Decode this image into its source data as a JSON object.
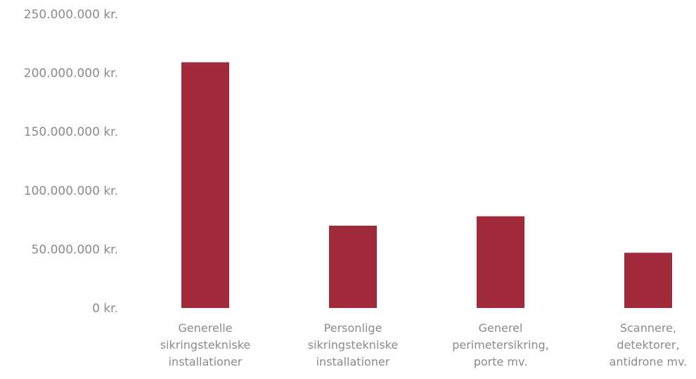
{
  "chart_data": {
    "type": "bar",
    "title": "",
    "xlabel": "",
    "ylabel": "",
    "ylim": [
      0,
      250000000
    ],
    "y_ticks": [
      {
        "value": 0,
        "label": "0 kr."
      },
      {
        "value": 50000000,
        "label": "50.000.000 kr."
      },
      {
        "value": 100000000,
        "label": "100.000.000 kr."
      },
      {
        "value": 150000000,
        "label": "150.000.000 kr."
      },
      {
        "value": 200000000,
        "label": "200.000.000 kr."
      },
      {
        "value": 250000000,
        "label": "250.000.000 kr."
      }
    ],
    "categories": [
      [
        "Generelle",
        "sikringstekniske",
        "installationer"
      ],
      [
        "Personlige",
        "sikringstekniske",
        "installationer"
      ],
      [
        "Generel",
        "perimetersikring,",
        "porte mv."
      ],
      [
        "Scannere,",
        "detektorer,",
        "antidrone mv."
      ]
    ],
    "values": [
      209000000,
      70000000,
      78000000,
      47000000
    ],
    "grid": false,
    "bar_color": "#a12a3a",
    "text_color": "#8a8a8a"
  }
}
